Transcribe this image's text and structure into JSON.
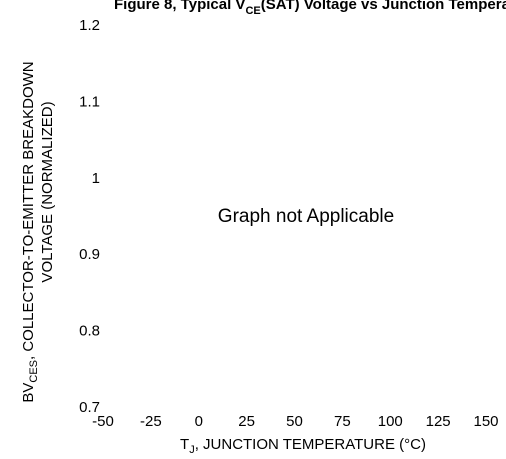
{
  "chart_data": {
    "type": "line",
    "title": "Figure 8, Typical V",
    "title_sub": "CE",
    "title_rest": "(SAT) Voltage vs Junction Temperature",
    "xlabel": "T",
    "xlabel_sub": "J",
    "xlabel_rest": ", JUNCTION TEMPERATURE (°C)",
    "ylabel_line1_a": "BV",
    "ylabel_line1_sub": "CES",
    "ylabel_line1_rest": ", COLLECTOR-TO-EMITTER BREAKDOWN",
    "ylabel_line2": "VOLTAGE (NORMALIZED)",
    "xticks": [
      "-50",
      "-25",
      "0",
      "25",
      "50",
      "75",
      "100",
      "125",
      "150"
    ],
    "yticks": [
      "1.2",
      "1.1",
      "1",
      "0.9",
      "0.8",
      "0.7"
    ],
    "xlim": [
      -50,
      150
    ],
    "ylim": [
      0.7,
      1.2
    ],
    "grid": false,
    "annotation": "Graph not Applicable",
    "series": []
  }
}
